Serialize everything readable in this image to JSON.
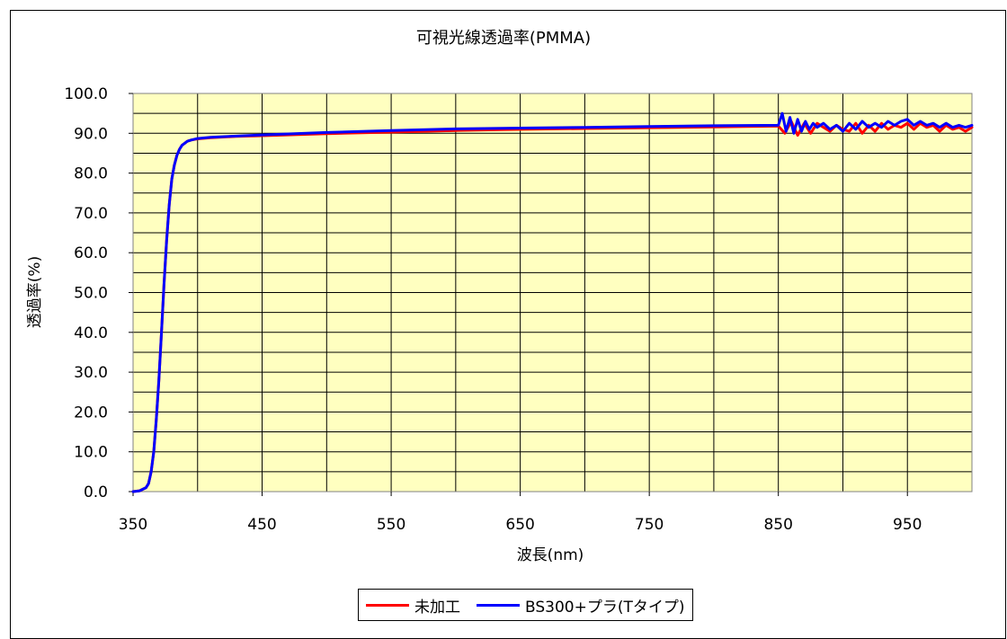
{
  "chart_data": {
    "type": "line",
    "title": "可視光線透過率(PMMA)",
    "xlabel": "波長(nm)",
    "ylabel": "透過率(%)",
    "xlim": [
      350,
      1000
    ],
    "ylim": [
      0,
      100
    ],
    "xticks": [
      350,
      450,
      550,
      650,
      750,
      850,
      950
    ],
    "xtick_labels": [
      "350",
      "450",
      "550",
      "650",
      "750",
      "850",
      "950"
    ],
    "yticks": [
      0,
      10,
      20,
      30,
      40,
      50,
      60,
      70,
      80,
      90,
      100
    ],
    "ytick_labels": [
      "0.0",
      "10.0",
      "20.0",
      "30.0",
      "40.0",
      "50.0",
      "60.0",
      "70.0",
      "80.0",
      "90.0",
      "100.0"
    ],
    "grid": true,
    "plot_background": "#ffffc0",
    "legend_position": "bottom",
    "series": [
      {
        "name": "未加工",
        "color": "#ff0000",
        "x": [
          350,
          355,
          360,
          362,
          364,
          366,
          368,
          370,
          372,
          374,
          376,
          378,
          380,
          382,
          384,
          386,
          388,
          390,
          392,
          395,
          400,
          410,
          430,
          450,
          500,
          550,
          600,
          650,
          700,
          750,
          800,
          850,
          855,
          860,
          865,
          870,
          875,
          880,
          885,
          890,
          895,
          900,
          905,
          910,
          915,
          920,
          925,
          930,
          935,
          940,
          945,
          950,
          955,
          960,
          965,
          970,
          975,
          980,
          985,
          990,
          995,
          1000
        ],
        "y": [
          0.0,
          0.2,
          1.0,
          2.0,
          5.0,
          10.0,
          18.0,
          28.0,
          40.0,
          52.0,
          63.0,
          72.0,
          78.5,
          82.0,
          84.5,
          86.0,
          87.0,
          87.5,
          88.0,
          88.3,
          88.6,
          88.9,
          89.2,
          89.4,
          89.9,
          90.3,
          90.7,
          91.0,
          91.2,
          91.4,
          91.6,
          91.8,
          90.0,
          93.0,
          89.5,
          92.5,
          90.0,
          92.5,
          91.5,
          90.5,
          92.0,
          91.0,
          90.5,
          92.5,
          90.0,
          92.0,
          90.5,
          92.5,
          91.0,
          92.0,
          91.5,
          92.5,
          91.0,
          92.5,
          91.5,
          92.0,
          90.5,
          92.0,
          91.0,
          91.5,
          90.5,
          91.5
        ]
      },
      {
        "name": "BS300+プラ(Tタイプ)",
        "color": "#0000ff",
        "x": [
          350,
          355,
          360,
          362,
          364,
          366,
          368,
          370,
          372,
          374,
          376,
          378,
          380,
          382,
          384,
          386,
          388,
          390,
          392,
          395,
          400,
          410,
          430,
          450,
          500,
          550,
          600,
          650,
          700,
          750,
          800,
          850,
          853,
          856,
          859,
          862,
          865,
          868,
          871,
          874,
          877,
          880,
          885,
          890,
          895,
          900,
          905,
          910,
          915,
          920,
          925,
          930,
          935,
          940,
          945,
          950,
          955,
          960,
          965,
          970,
          975,
          980,
          985,
          990,
          995,
          1000
        ],
        "y": [
          0.0,
          0.2,
          1.0,
          2.0,
          5.0,
          10.0,
          18.0,
          28.0,
          40.0,
          52.0,
          63.0,
          72.0,
          78.5,
          82.0,
          84.5,
          86.0,
          87.0,
          87.5,
          88.0,
          88.3,
          88.7,
          89.0,
          89.3,
          89.6,
          90.2,
          90.7,
          91.1,
          91.3,
          91.5,
          91.7,
          91.9,
          92.0,
          95.0,
          90.5,
          94.0,
          90.0,
          93.5,
          90.5,
          93.0,
          91.0,
          92.5,
          91.5,
          92.5,
          91.0,
          92.0,
          90.5,
          92.5,
          91.0,
          93.0,
          91.5,
          92.5,
          91.5,
          93.0,
          92.0,
          93.0,
          93.5,
          92.0,
          93.0,
          92.0,
          92.5,
          91.5,
          92.5,
          91.5,
          92.0,
          91.5,
          92.0
        ]
      }
    ]
  }
}
